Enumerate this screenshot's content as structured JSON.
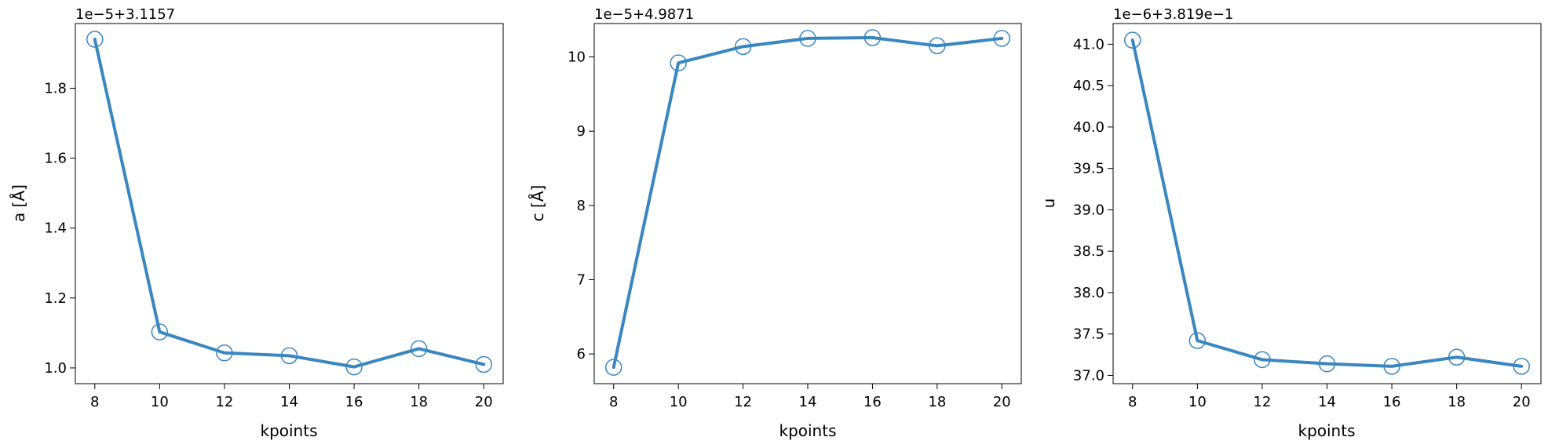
{
  "colors": {
    "series": "#3a87c0",
    "axes": "#000000"
  },
  "chart_data": [
    {
      "type": "line",
      "offset_text": "1e−5+3.1157",
      "xlabel": "kpoints",
      "ylabel": "a [Å]",
      "x": [
        8,
        10,
        12,
        14,
        16,
        18,
        20
      ],
      "xticks": [
        "8",
        "10",
        "12",
        "14",
        "16",
        "18",
        "20"
      ],
      "xlim": [
        7.4,
        20.6
      ],
      "yticks": [
        1.0,
        1.2,
        1.4,
        1.6,
        1.8
      ],
      "yticklabels": [
        "1.0",
        "1.2",
        "1.4",
        "1.6",
        "1.8"
      ],
      "ylim": [
        0.955,
        1.985
      ],
      "marker": "open-circle",
      "grid": false,
      "series": [
        {
          "values": [
            1.94,
            1.103,
            1.043,
            1.035,
            1.003,
            1.055,
            1.01
          ]
        }
      ]
    },
    {
      "type": "line",
      "offset_text": "1e−5+4.9871",
      "xlabel": "kpoints",
      "ylabel": "c [Å]",
      "x": [
        8,
        10,
        12,
        14,
        16,
        18,
        20
      ],
      "xticks": [
        "8",
        "10",
        "12",
        "14",
        "16",
        "18",
        "20"
      ],
      "xlim": [
        7.4,
        20.6
      ],
      "yticks": [
        6,
        7,
        8,
        9,
        10
      ],
      "yticklabels": [
        "6",
        "7",
        "8",
        "9",
        "10"
      ],
      "ylim": [
        5.6,
        10.45
      ],
      "marker": "open-circle",
      "grid": false,
      "series": [
        {
          "values": [
            5.82,
            9.92,
            10.14,
            10.25,
            10.26,
            10.15,
            10.25
          ]
        }
      ]
    },
    {
      "type": "line",
      "offset_text": "1e−6+3.819e−1",
      "xlabel": "kpoints",
      "ylabel": "u",
      "x": [
        8,
        10,
        12,
        14,
        16,
        18,
        20
      ],
      "xticks": [
        "8",
        "10",
        "12",
        "14",
        "16",
        "18",
        "20"
      ],
      "xlim": [
        7.4,
        20.6
      ],
      "yticks": [
        37.0,
        37.5,
        38.0,
        38.5,
        39.0,
        39.5,
        40.0,
        40.5,
        41.0
      ],
      "yticklabels": [
        "37.0",
        "37.5",
        "38.0",
        "38.5",
        "39.0",
        "39.5",
        "40.0",
        "40.5",
        "41.0"
      ],
      "ylim": [
        36.9,
        41.25
      ],
      "marker": "open-circle",
      "grid": false,
      "series": [
        {
          "values": [
            41.05,
            37.42,
            37.19,
            37.14,
            37.11,
            37.22,
            37.11
          ]
        }
      ]
    }
  ]
}
